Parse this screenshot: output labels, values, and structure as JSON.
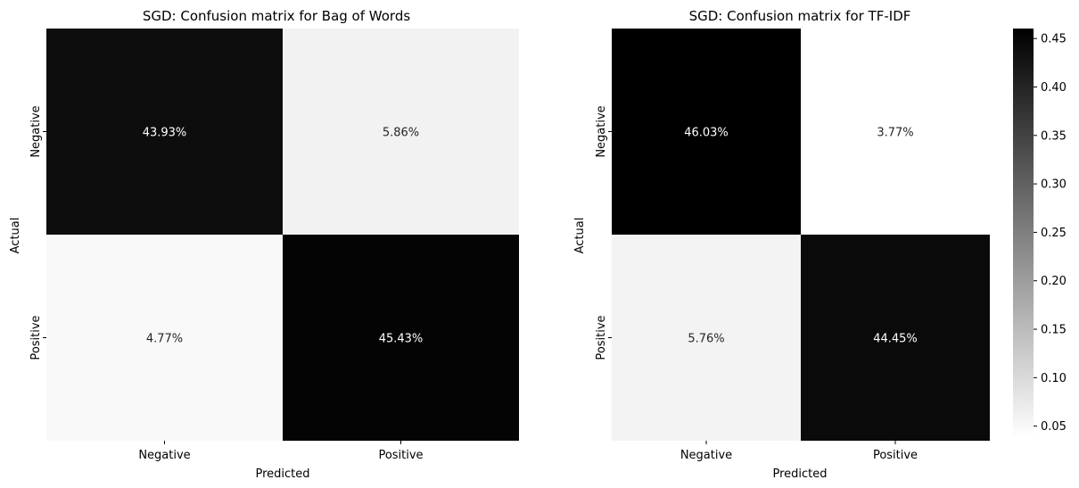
{
  "chart_data": [
    {
      "type": "heatmap",
      "title": "SGD: Confusion matrix for Bag of Words",
      "xlabel": "Predicted",
      "ylabel": "Actual",
      "x_categories": [
        "Negative",
        "Positive"
      ],
      "y_categories": [
        "Negative",
        "Positive"
      ],
      "values": [
        [
          0.4393,
          0.0586
        ],
        [
          0.0477,
          0.4543
        ]
      ],
      "labels": [
        [
          "43.93%",
          "5.86%"
        ],
        [
          "4.77%",
          "45.43%"
        ]
      ],
      "colormap": "Greys"
    },
    {
      "type": "heatmap",
      "title": "SGD: Confusion matrix for TF-IDF",
      "xlabel": "Predicted",
      "ylabel": "Actual",
      "x_categories": [
        "Negative",
        "Positive"
      ],
      "y_categories": [
        "Negative",
        "Positive"
      ],
      "values": [
        [
          0.4603,
          0.0377
        ],
        [
          0.0576,
          0.4445
        ]
      ],
      "labels": [
        [
          "46.03%",
          "3.77%"
        ],
        [
          "5.76%",
          "44.45%"
        ]
      ],
      "colormap": "Greys"
    }
  ],
  "colorbar": {
    "vmin": 0.0377,
    "vmax": 0.4603,
    "ticks": [
      0.05,
      0.1,
      0.15,
      0.2,
      0.25,
      0.3,
      0.35,
      0.4,
      0.45
    ],
    "tick_labels": [
      "0.05",
      "0.10",
      "0.15",
      "0.20",
      "0.25",
      "0.30",
      "0.35",
      "0.40",
      "0.45"
    ]
  },
  "colors": {
    "low": "#ffffff",
    "high": "#000000",
    "light_text": "#ffffff",
    "dark_text": "#262626"
  }
}
